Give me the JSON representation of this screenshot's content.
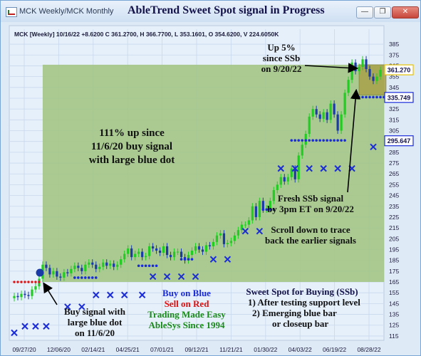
{
  "window": {
    "tab_text": "MCK Weekly/MCK Monthly",
    "title": "AbleTrend Sweet Spot signal in Progress",
    "minimize_glyph": "—",
    "restore_glyph": "❐",
    "close_glyph": "✕"
  },
  "colors": {
    "up_bar": "#22cc22",
    "down_bar": "#1a3aa8",
    "support_dots": "#1a2bd8",
    "resistance_dots": "#e01010",
    "trend_fill": "#a3c586",
    "sweet_spot_fill": "#a8a24a"
  },
  "chart_data": {
    "type": "candlestick",
    "header": "MCK [Weekly] 10/16/22  +8.6200 C 361.2700, H 366.7700, L 353.1601, O 354.6200, V 224.6050K",
    "x_tick_labels": [
      "09/27/20",
      "12/06/20",
      "02/14/21",
      "04/25/21",
      "07/01/21",
      "09/12/21",
      "11/21/21",
      "01/30/22",
      "04/03/22",
      "06/19/22",
      "08/28/22"
    ],
    "y_ticks": [
      115,
      125,
      135,
      145,
      155,
      165,
      175,
      185,
      195,
      205,
      215,
      225,
      235,
      245,
      255,
      265,
      275,
      285,
      295,
      305,
      315,
      325,
      335,
      345,
      355,
      365,
      375,
      385
    ],
    "ylim": [
      111,
      389
    ],
    "price_tags": [
      {
        "label": "361.270",
        "value": 361.27,
        "color": "#e6c200"
      },
      {
        "label": "335.749",
        "value": 335.749,
        "color": "#1a2bd8"
      },
      {
        "label": "295.647",
        "value": 295.647,
        "color": "#1a2bd8"
      }
    ],
    "closes": [
      152,
      151,
      154,
      153,
      152,
      158,
      161,
      168,
      181,
      178,
      172,
      175,
      170,
      169,
      174,
      173,
      177,
      180,
      178,
      175,
      181,
      183,
      181,
      177,
      179,
      183,
      180,
      182,
      179,
      181,
      186,
      191,
      196,
      188,
      191,
      193,
      188,
      189,
      198,
      196,
      194,
      192,
      198,
      190,
      188,
      193,
      193,
      188,
      185,
      190,
      194,
      198,
      195,
      193,
      199,
      198,
      202,
      208,
      210,
      200,
      201,
      203,
      208,
      213,
      218,
      218,
      222,
      235,
      225,
      240,
      232,
      233,
      240,
      250,
      255,
      262,
      258,
      262,
      270,
      260,
      282,
      292,
      302,
      318,
      325,
      320,
      316,
      322,
      315,
      330,
      320,
      305,
      320,
      340,
      352,
      368,
      360,
      364,
      371,
      362,
      355,
      351,
      355,
      361.27
    ],
    "support_dots": [
      {
        "from": 17,
        "to": 23,
        "value": 169
      },
      {
        "from": 35,
        "to": 40,
        "value": 180
      },
      {
        "from": 47,
        "to": 50,
        "value": 186
      },
      {
        "from": 70,
        "to": 73,
        "value": 232
      },
      {
        "from": 78,
        "to": 93,
        "value": 296
      },
      {
        "from": 97,
        "to": 104,
        "value": 336
      }
    ],
    "resistance_dots": {
      "from": 0,
      "to": 7,
      "value": 165
    },
    "x_marks": [
      {
        "i": 0,
        "v": 118
      },
      {
        "i": 3,
        "v": 124
      },
      {
        "i": 6,
        "v": 124
      },
      {
        "i": 9,
        "v": 124
      },
      {
        "i": 15,
        "v": 142
      },
      {
        "i": 19,
        "v": 142
      },
      {
        "i": 23,
        "v": 153
      },
      {
        "i": 27,
        "v": 153
      },
      {
        "i": 31,
        "v": 153
      },
      {
        "i": 36,
        "v": 153
      },
      {
        "i": 39,
        "v": 170
      },
      {
        "i": 43,
        "v": 170
      },
      {
        "i": 47,
        "v": 170
      },
      {
        "i": 51,
        "v": 170
      },
      {
        "i": 56,
        "v": 186
      },
      {
        "i": 60,
        "v": 186
      },
      {
        "i": 65,
        "v": 212
      },
      {
        "i": 69,
        "v": 212
      },
      {
        "i": 75,
        "v": 270
      },
      {
        "i": 79,
        "v": 270
      },
      {
        "i": 83,
        "v": 270
      },
      {
        "i": 87,
        "v": 270
      },
      {
        "i": 91,
        "v": 270
      },
      {
        "i": 95,
        "v": 270
      },
      {
        "i": 101,
        "v": 290
      }
    ],
    "annotations": {
      "trend_text": [
        "111% up since",
        "11/6/20 buy signal",
        "with large blue dot"
      ],
      "up_text": [
        "Up 5%",
        "since SSb",
        "on 9/20/22"
      ],
      "fresh_text": [
        "Fresh SSb signal",
        "by 3pm ET on 9/20/22"
      ],
      "scroll_text": [
        "Scroll down to trace",
        "back the earlier signals"
      ],
      "buy_text": [
        "Buy signal with",
        "large blue dot",
        "on 11/6/20"
      ],
      "legend_buy": "Buy on Blue",
      "legend_sell": "Sell on Red",
      "legend_made": "Trading Made Easy",
      "legend_since": "AbleSys Since 1994",
      "sweet_title": "Sweet Spot for Buying (SSb)",
      "sweet_lines": [
        "1) After testing support level",
        "2) Emerging blue bar",
        "or closeup bar"
      ]
    }
  }
}
